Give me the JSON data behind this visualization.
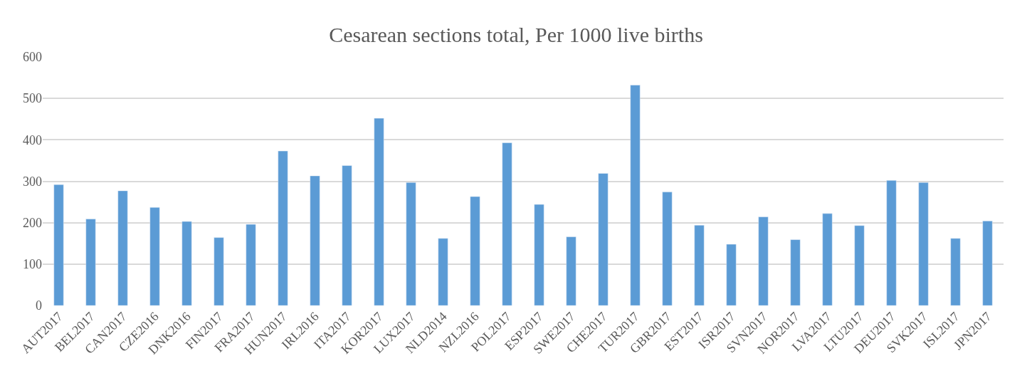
{
  "chart_data": {
    "type": "bar",
    "title": "Cesarean sections total, Per 1000 live births",
    "categories": [
      "AUT2017",
      "BEL2017",
      "CAN2017",
      "CZE2016",
      "DNK2016",
      "FIN2017",
      "FRA2017",
      "HUN2017",
      "IRL2016",
      "ITA2017",
      "KOR2017",
      "LUX2017",
      "NLD2014",
      "NZL2016",
      "POL2017",
      "ESP2017",
      "SWE2017",
      "CHE2017",
      "TUR2017",
      "GBR2017",
      "EST2017",
      "ISR2017",
      "SVN2017",
      "NOR2017",
      "LVA2017",
      "LTU2017",
      "DEU2017",
      "SVK2017",
      "ISL2017",
      "JPN2017"
    ],
    "values": [
      292,
      209,
      277,
      237,
      203,
      164,
      196,
      373,
      313,
      338,
      452,
      297,
      162,
      263,
      393,
      244,
      166,
      319,
      532,
      274,
      194,
      148,
      214,
      159,
      222,
      193,
      302,
      297,
      162,
      204
    ],
    "color": "#5b9bd5",
    "ylim": [
      0,
      600
    ],
    "yticks": [
      0,
      100,
      200,
      300,
      400,
      500,
      600
    ],
    "grid": "y",
    "legend": false
  }
}
